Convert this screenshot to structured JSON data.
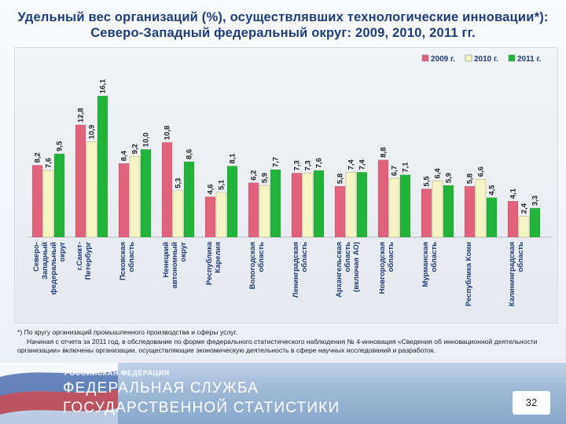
{
  "title": "Удельный вес организаций (%), осуществлявших технологические инновации*): Северо-Западный федеральный округ: 2009, 2010, 2011 гг.",
  "chart_data": {
    "type": "bar",
    "title": "Удельный вес организаций (%), осуществлявших технологические инновации*): Северо-Западный федеральный округ: 2009, 2010, 2011 гг.",
    "categories": [
      "Северо-Западный федеральный округ",
      "г.Санкт-Петербург",
      "Псковская область",
      "Ненецкий автономный округ",
      "Республика Карелия",
      "Вологодская область",
      "Ленинградская область",
      "Архангельская область (включая АО)",
      "Новгородская область",
      "Мурманская область",
      "Республика Коми",
      "Калининградская область"
    ],
    "series": [
      {
        "name": "2009 г.",
        "values": [
          8.2,
          12.8,
          8.4,
          10.8,
          4.6,
          6.2,
          7.3,
          5.8,
          8.8,
          5.5,
          5.8,
          4.1
        ],
        "color": "#e0627d"
      },
      {
        "name": "2010 г.",
        "values": [
          7.6,
          10.9,
          9.2,
          5.3,
          5.1,
          5.9,
          7.3,
          7.4,
          6.7,
          6.4,
          6.6,
          2.4
        ],
        "color": "#f5f5c4"
      },
      {
        "name": "2011 г.",
        "values": [
          9.5,
          16.1,
          10.0,
          8.6,
          8.1,
          7.7,
          7.6,
          7.4,
          7.1,
          5.9,
          4.5,
          3.3
        ],
        "color": "#22b43a"
      }
    ],
    "value_labels": [
      [
        "8,2",
        "7,6",
        "9,5"
      ],
      [
        "12,8",
        "10,9",
        "16,1"
      ],
      [
        "8,4",
        "9,2",
        "10,0"
      ],
      [
        "10,8",
        "5,3",
        "8,6"
      ],
      [
        "4,6",
        "5,1",
        "8,1"
      ],
      [
        "6,2",
        "5,9",
        "7,7"
      ],
      [
        "7,3",
        "7,3",
        "7,6"
      ],
      [
        "5,8",
        "7,4",
        "7,4"
      ],
      [
        "8,8",
        "6,7",
        "7,1"
      ],
      [
        "5,5",
        "6,4",
        "5,9"
      ],
      [
        "5,8",
        "6,6",
        "4,5"
      ],
      [
        "4,1",
        "2,4",
        "3,3"
      ]
    ],
    "category_labels": [
      [
        "Северо-",
        "Западный",
        "федеральный",
        "округ"
      ],
      [
        "г.Санкт-",
        "Петербург"
      ],
      [
        "Псковская",
        "область"
      ],
      [
        "Ненецкий",
        "автономный",
        "округ"
      ],
      [
        "Республика",
        "Карелия"
      ],
      [
        "Вологодская",
        "область"
      ],
      [
        "Ленинградская",
        "область"
      ],
      [
        "Архангельская",
        "область",
        "(включая АО)"
      ],
      [
        "Новгородская",
        "область"
      ],
      [
        "Мурманская",
        "область"
      ],
      [
        "Республика Коми"
      ],
      [
        "Калининградская",
        "область"
      ]
    ],
    "ylim": [
      0,
      18
    ],
    "grid": false,
    "legend_position": "top-right"
  },
  "footnote": {
    "line1": "*) По кругу организаций промышленного производства и сферы услуг.",
    "line2": "Начиная с отчета за 2011 год, в обследование по форме федерального статистического наблюдения № 4-инновация «Сведения об инновационной деятельности организации» включены организации, осуществляющие экономическую деятельность в сфере научных исследований и разработок."
  },
  "footer": {
    "country": "РОССИЙСКАЯ ФЕДЕРАЦИЯ",
    "org_line1": "ФЕДЕРАЛЬНАЯ СЛУЖБА",
    "org_line2": "ГОСУДАРСТВЕННОЙ СТАТИСТИКИ",
    "page_number": "32"
  }
}
